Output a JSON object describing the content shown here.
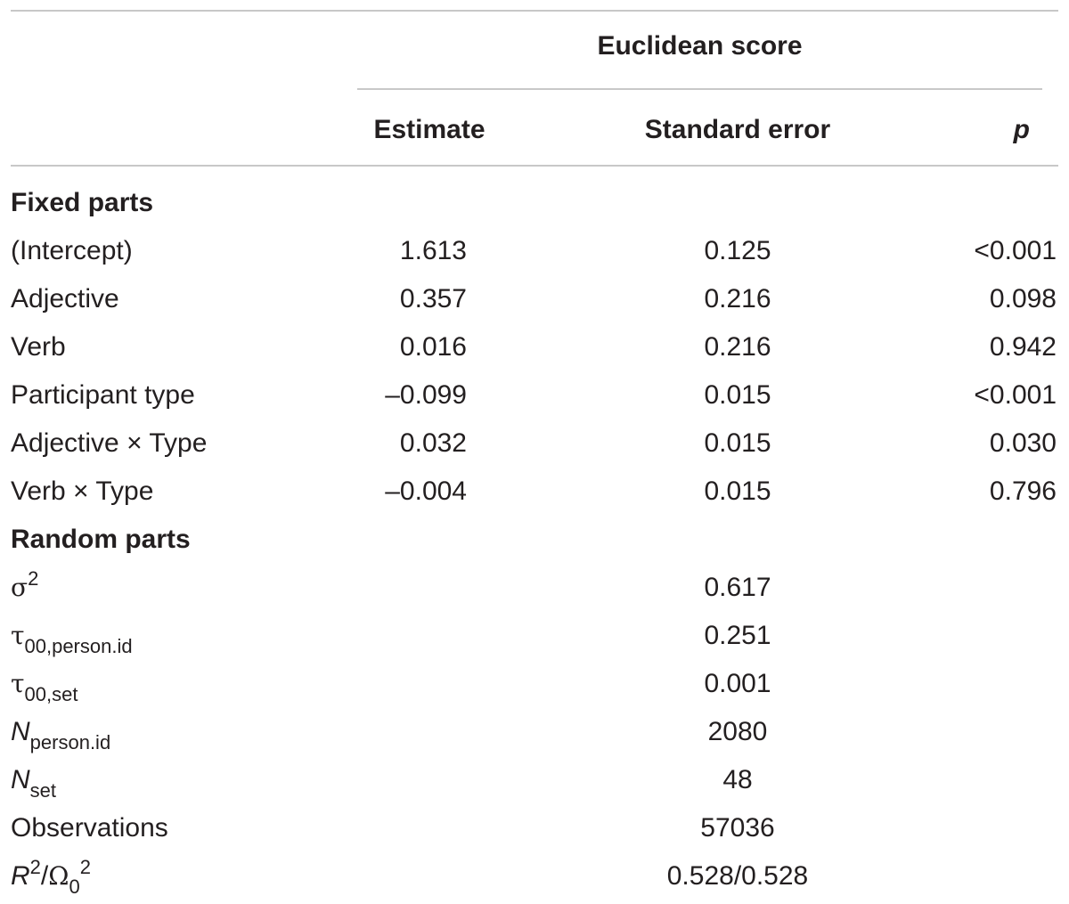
{
  "header": {
    "group": "Euclidean score",
    "col_estimate": "Estimate",
    "col_se": "Standard error",
    "col_p": "p"
  },
  "fixed": {
    "section": "Fixed parts",
    "rows": [
      {
        "label": "(Intercept)",
        "estimate": "1.613",
        "se": "0.125",
        "p": "<0.001"
      },
      {
        "label": "Adjective",
        "estimate": "0.357",
        "se": "0.216",
        "p": "0.098"
      },
      {
        "label": "Verb",
        "estimate": "0.016",
        "se": "0.216",
        "p": "0.942"
      },
      {
        "label": "Participant type",
        "estimate": "–0.099",
        "se": "0.015",
        "p": "<0.001"
      },
      {
        "label": "Adjective × Type",
        "estimate": "0.032",
        "se": "0.015",
        "p": "0.030"
      },
      {
        "label": "Verb × Type",
        "estimate": "–0.004",
        "se": "0.015",
        "p": "0.796"
      }
    ]
  },
  "random": {
    "section": "Random parts",
    "sigma2": {
      "sym": "σ",
      "sup": "2",
      "value": "0.617"
    },
    "tau_person": {
      "sym": "τ",
      "sub": "00,person.id",
      "value": "0.251"
    },
    "tau_set": {
      "sym": "τ",
      "sub": "00,set",
      "value": "0.001"
    },
    "n_person": {
      "sym": "N",
      "sub": "person.id",
      "value": "2080"
    },
    "n_set": {
      "sym": "N",
      "sub": "set",
      "value": "48"
    },
    "observations": {
      "label": "Observations",
      "value": "57036"
    },
    "r2": {
      "r": "R",
      "r_sup": "2",
      "slash": "/",
      "omega": "Ω",
      "omega_sub": "0",
      "omega_sup": "2",
      "value": "0.528/0.528"
    }
  }
}
